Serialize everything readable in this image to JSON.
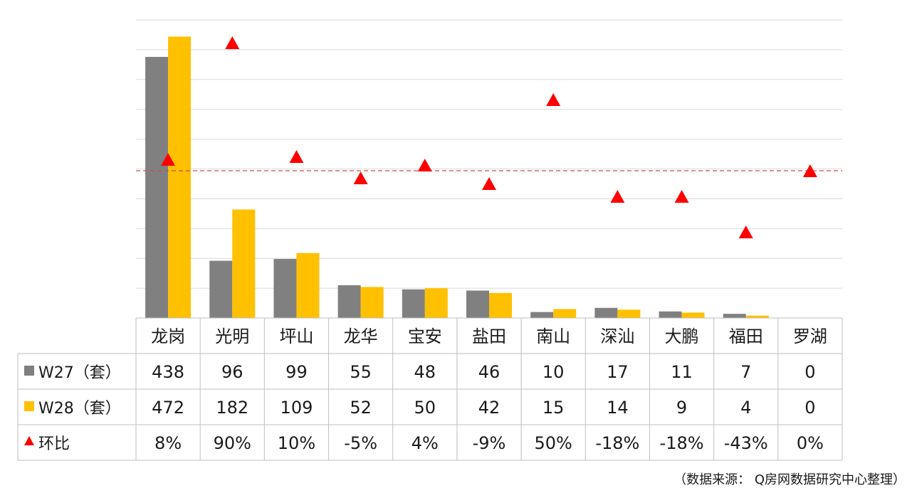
{
  "chart_data": {
    "type": "bar",
    "categories": [
      "龙岗",
      "光明",
      "坪山",
      "龙华",
      "宝安",
      "盐田",
      "南山",
      "深汕",
      "大鹏",
      "福田",
      "罗湖"
    ],
    "series": [
      {
        "name": "W27（套）",
        "kind": "bar",
        "color": "#808080",
        "values": [
          438,
          96,
          99,
          55,
          48,
          46,
          10,
          17,
          11,
          7,
          0
        ]
      },
      {
        "name": "W28（套）",
        "kind": "bar",
        "color": "#ffc000",
        "values": [
          472,
          182,
          109,
          52,
          50,
          42,
          15,
          14,
          9,
          4,
          0
        ]
      },
      {
        "name": "环比",
        "kind": "marker",
        "marker": "triangle",
        "color": "#ff0000",
        "values": [
          8,
          90,
          10,
          -5,
          4,
          -9,
          50,
          -18,
          -18,
          -43,
          0
        ],
        "labels": [
          "8%",
          "90%",
          "10%",
          "-5%",
          "4%",
          "-9%",
          "50%",
          "-18%",
          "-18%",
          "-43%",
          "0%"
        ]
      }
    ],
    "bar_axis_range": [
      0,
      500
    ],
    "pct_axis_range": [
      -100,
      100
    ],
    "reference_line": {
      "value": 0,
      "style": "dashed",
      "color": "#c0504d"
    },
    "grid": true,
    "data_table": true
  },
  "source_note": "（数据来源： Q房网数据研究中心整理）"
}
